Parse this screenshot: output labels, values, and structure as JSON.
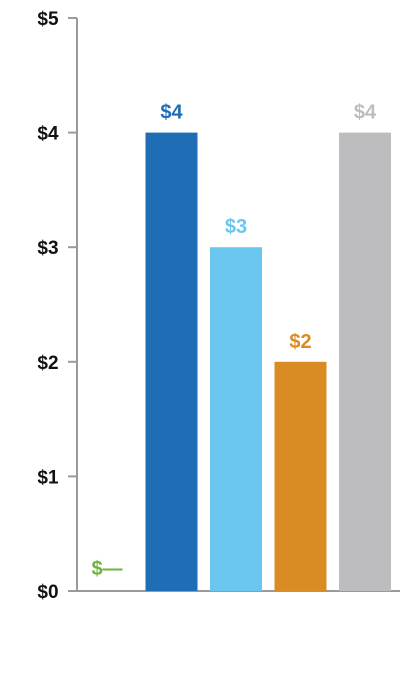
{
  "chart_data": {
    "type": "bar",
    "categories": [
      "",
      "",
      "",
      "",
      ""
    ],
    "values": [
      0,
      4,
      3,
      2,
      4
    ],
    "data_labels": [
      "$—",
      "$4",
      "$3",
      "$2",
      "$4"
    ],
    "colors": [
      "#6db33f",
      "#1f6db5",
      "#6ac6ef",
      "#d98c24",
      "#bdbdbf"
    ],
    "yticks": [
      "$0",
      "$1",
      "$2",
      "$3",
      "$4",
      "$5"
    ],
    "ylim": [
      0,
      5
    ],
    "title": "",
    "xlabel": "",
    "ylabel": "",
    "grid": false,
    "legend": "none"
  }
}
